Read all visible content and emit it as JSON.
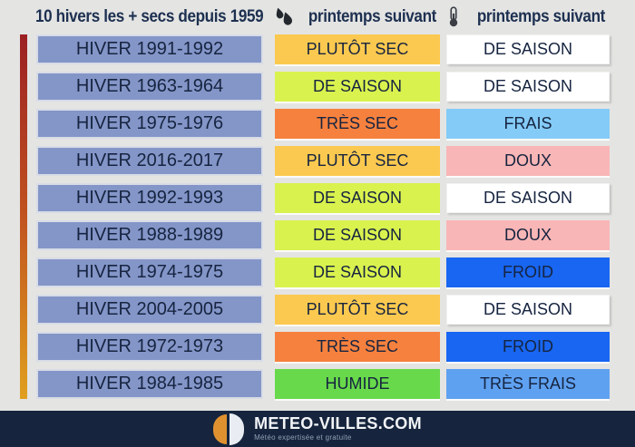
{
  "header": {
    "col1": "10 hivers les + secs depuis 1959",
    "col2": "printemps suivant",
    "col3": "printemps suivant",
    "col2_icon": "raindrops-icon",
    "col3_icon": "thermometer-icon"
  },
  "palette": {
    "winter_blue": "#8496c8",
    "amber": "#fbc94f",
    "chartreuse": "#daf24e",
    "orange": "#f6813e",
    "green": "#68d94b",
    "white": "#ffffff",
    "sky": "#85cbf7",
    "pink": "#f9b6b6",
    "royal": "#1866f2",
    "medblue": "#5fa1f1",
    "text_navy": "#162440",
    "footer_navy": "#16253d",
    "logo_orange": "#e0912f",
    "bar_gradient_top": "#9b2023",
    "bar_gradient_bottom": "#e0a01e"
  },
  "rows": [
    {
      "winter": "HIVER 1991-1992",
      "precip": {
        "label": "PLUTÔT SEC",
        "color": "amber"
      },
      "temp": {
        "label": "DE SAISON",
        "color": "white"
      }
    },
    {
      "winter": "HIVER 1963-1964",
      "precip": {
        "label": "DE SAISON",
        "color": "chartreuse"
      },
      "temp": {
        "label": "DE SAISON",
        "color": "white"
      }
    },
    {
      "winter": "HIVER 1975-1976",
      "precip": {
        "label": "TRÈS SEC",
        "color": "orange"
      },
      "temp": {
        "label": "FRAIS",
        "color": "sky"
      }
    },
    {
      "winter": "HIVER 2016-2017",
      "precip": {
        "label": "PLUTÔT SEC",
        "color": "amber"
      },
      "temp": {
        "label": "DOUX",
        "color": "pink"
      }
    },
    {
      "winter": "HIVER 1992-1993",
      "precip": {
        "label": "DE SAISON",
        "color": "chartreuse"
      },
      "temp": {
        "label": "DE SAISON",
        "color": "white"
      }
    },
    {
      "winter": "HIVER 1988-1989",
      "precip": {
        "label": "DE SAISON",
        "color": "chartreuse"
      },
      "temp": {
        "label": "DOUX",
        "color": "pink"
      }
    },
    {
      "winter": "HIVER 1974-1975",
      "precip": {
        "label": "DE SAISON",
        "color": "chartreuse"
      },
      "temp": {
        "label": "FROID",
        "color": "royal"
      }
    },
    {
      "winter": "HIVER 2004-2005",
      "precip": {
        "label": "PLUTÔT SEC",
        "color": "amber"
      },
      "temp": {
        "label": "DE SAISON",
        "color": "white"
      }
    },
    {
      "winter": "HIVER 1972-1973",
      "precip": {
        "label": "TRÈS SEC",
        "color": "orange"
      },
      "temp": {
        "label": "FROID",
        "color": "royal"
      }
    },
    {
      "winter": "HIVER 1984-1985",
      "precip": {
        "label": "HUMIDE",
        "color": "green"
      },
      "temp": {
        "label": "TRÈS FRAIS",
        "color": "medblue"
      }
    }
  ],
  "footer": {
    "brand": "METEO-VILLES.COM",
    "tagline": "Météo expertisée et gratuite"
  },
  "chart_data": {
    "type": "table",
    "title": "10 hivers les + secs depuis 1959",
    "columns": [
      "Hiver",
      "Précipitations printemps suivant",
      "Températures printemps suivant"
    ],
    "rows": [
      [
        "HIVER 1991-1992",
        "PLUTÔT SEC",
        "DE SAISON"
      ],
      [
        "HIVER 1963-1964",
        "DE SAISON",
        "DE SAISON"
      ],
      [
        "HIVER 1975-1976",
        "TRÈS SEC",
        "FRAIS"
      ],
      [
        "HIVER 2016-2017",
        "PLUTÔT SEC",
        "DOUX"
      ],
      [
        "HIVER 1992-1993",
        "DE SAISON",
        "DE SAISON"
      ],
      [
        "HIVER 1988-1989",
        "DE SAISON",
        "DOUX"
      ],
      [
        "HIVER 1974-1975",
        "DE SAISON",
        "FROID"
      ],
      [
        "HIVER 2004-2005",
        "PLUTÔT SEC",
        "DE SAISON"
      ],
      [
        "HIVER 1972-1973",
        "TRÈS SEC",
        "FROID"
      ],
      [
        "HIVER 1984-1985",
        "HUMIDE",
        "TRÈS FRAIS"
      ]
    ]
  }
}
